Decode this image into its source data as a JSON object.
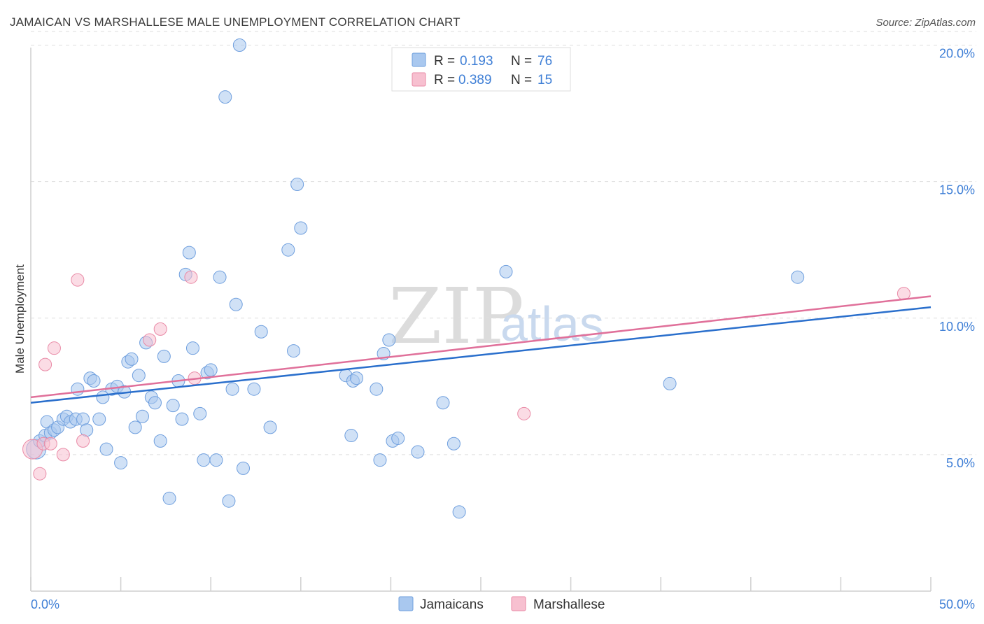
{
  "header": {
    "title": "JAMAICAN VS MARSHALLESE MALE UNEMPLOYMENT CORRELATION CHART",
    "source": "Source: ZipAtlas.com"
  },
  "watermark": {
    "zip": "ZIP",
    "atlas": "atlas"
  },
  "colors": {
    "jamaicans_fill": "#a9c8ef",
    "jamaicans_stroke": "#6f9fde",
    "jamaicans_line": "#2a6fcc",
    "marshallese_fill": "#f7c0d0",
    "marshallese_stroke": "#e98aa6",
    "marshallese_line": "#e0709a",
    "tick_label": "#3f7fd6",
    "grid": "#dedede"
  },
  "legend": {
    "rows": [
      {
        "r_label": "R =",
        "r_value": "0.193",
        "n_label": "N =",
        "n_value": "76"
      },
      {
        "r_label": "R =",
        "r_value": "0.389",
        "n_label": "N =",
        "n_value": "15"
      }
    ]
  },
  "bottom_legend": {
    "items": [
      "Jamaicans",
      "Marshallese"
    ]
  },
  "chart_data": {
    "type": "scatter",
    "title": "JAMAICAN VS MARSHALLESE MALE UNEMPLOYMENT CORRELATION CHART",
    "xlabel": "",
    "ylabel": "Male Unemployment",
    "xlim": [
      0,
      50
    ],
    "ylim": [
      0,
      20.5
    ],
    "x_tick_labels": [
      "0.0%",
      "50.0%"
    ],
    "y_ticks": [
      5,
      10,
      15,
      20
    ],
    "y_tick_labels": [
      "5.0%",
      "10.0%",
      "15.0%",
      "20.0%"
    ],
    "grid": true,
    "series": [
      {
        "name": "Jamaicans",
        "r": 0.193,
        "n": 76,
        "trend": {
          "x0": 0,
          "y0": 6.9,
          "x1": 50,
          "y1": 10.4
        },
        "points": [
          [
            0.3,
            5.2
          ],
          [
            0.5,
            5.5
          ],
          [
            0.8,
            5.7
          ],
          [
            0.9,
            6.2
          ],
          [
            1.1,
            5.8
          ],
          [
            1.3,
            5.9
          ],
          [
            1.5,
            6.0
          ],
          [
            1.8,
            6.3
          ],
          [
            2.0,
            6.4
          ],
          [
            2.2,
            6.2
          ],
          [
            2.5,
            6.3
          ],
          [
            2.6,
            7.4
          ],
          [
            2.9,
            6.3
          ],
          [
            3.1,
            5.9
          ],
          [
            3.3,
            7.8
          ],
          [
            3.5,
            7.7
          ],
          [
            3.8,
            6.3
          ],
          [
            4.0,
            7.1
          ],
          [
            4.2,
            5.2
          ],
          [
            4.5,
            7.4
          ],
          [
            4.8,
            7.5
          ],
          [
            5.0,
            4.7
          ],
          [
            5.2,
            7.3
          ],
          [
            5.4,
            8.4
          ],
          [
            5.6,
            8.5
          ],
          [
            5.8,
            6.0
          ],
          [
            6.0,
            7.9
          ],
          [
            6.2,
            6.4
          ],
          [
            6.4,
            9.1
          ],
          [
            6.7,
            7.1
          ],
          [
            6.9,
            6.9
          ],
          [
            7.2,
            5.5
          ],
          [
            7.4,
            8.6
          ],
          [
            7.7,
            3.4
          ],
          [
            7.9,
            6.8
          ],
          [
            8.2,
            7.7
          ],
          [
            8.4,
            6.3
          ],
          [
            8.6,
            11.6
          ],
          [
            8.8,
            12.4
          ],
          [
            9.0,
            8.9
          ],
          [
            9.4,
            6.5
          ],
          [
            9.6,
            4.8
          ],
          [
            9.8,
            8.0
          ],
          [
            10.0,
            8.1
          ],
          [
            10.3,
            4.8
          ],
          [
            10.5,
            11.5
          ],
          [
            10.8,
            18.1
          ],
          [
            11.0,
            3.3
          ],
          [
            11.2,
            7.4
          ],
          [
            11.4,
            10.5
          ],
          [
            11.6,
            20.0
          ],
          [
            11.8,
            4.5
          ],
          [
            12.4,
            7.4
          ],
          [
            12.8,
            9.5
          ],
          [
            13.3,
            6.0
          ],
          [
            14.3,
            12.5
          ],
          [
            14.6,
            8.8
          ],
          [
            14.8,
            14.9
          ],
          [
            15.0,
            13.3
          ],
          [
            17.5,
            7.9
          ],
          [
            17.8,
            5.7
          ],
          [
            17.9,
            7.7
          ],
          [
            18.1,
            7.8
          ],
          [
            19.2,
            7.4
          ],
          [
            19.4,
            4.8
          ],
          [
            19.6,
            8.7
          ],
          [
            19.9,
            9.2
          ],
          [
            20.1,
            5.5
          ],
          [
            20.4,
            5.6
          ],
          [
            21.5,
            5.1
          ],
          [
            22.9,
            6.9
          ],
          [
            23.5,
            5.4
          ],
          [
            23.8,
            2.9
          ],
          [
            26.4,
            11.7
          ],
          [
            35.5,
            7.6
          ],
          [
            42.6,
            11.5
          ]
        ]
      },
      {
        "name": "Marshallese",
        "r": 0.389,
        "n": 15,
        "trend": {
          "x0": 0,
          "y0": 7.1,
          "x1": 50,
          "y1": 10.8
        },
        "points": [
          [
            0.1,
            5.2
          ],
          [
            0.5,
            4.3
          ],
          [
            0.7,
            5.4
          ],
          [
            0.8,
            8.3
          ],
          [
            1.1,
            5.4
          ],
          [
            1.3,
            8.9
          ],
          [
            1.8,
            5.0
          ],
          [
            2.6,
            11.4
          ],
          [
            2.9,
            5.5
          ],
          [
            6.6,
            9.2
          ],
          [
            7.2,
            9.6
          ],
          [
            8.9,
            11.5
          ],
          [
            9.1,
            7.8
          ],
          [
            27.4,
            6.5
          ],
          [
            48.5,
            10.9
          ]
        ]
      }
    ]
  }
}
